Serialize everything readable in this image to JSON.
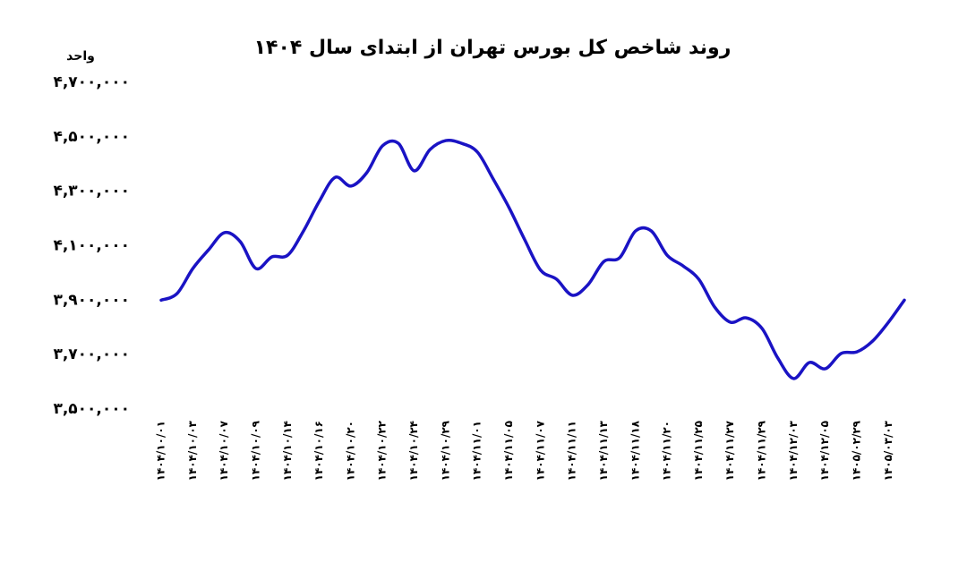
{
  "chart_data": {
    "type": "line",
    "title": "روند شاخص کل بورس تهران از ابتدای سال ۱۴۰۴",
    "y_axis_label": "واحد",
    "categories": [
      "۱۴۰۴/۱۰/۰۱",
      null,
      "۱۴۰۴/۱۰/۰۳",
      null,
      "۱۴۰۴/۱۰/۰۷",
      null,
      "۱۴۰۴/۱۰/۰۹",
      null,
      "۱۴۰۴/۱۰/۱۴",
      null,
      "۱۴۰۴/۱۰/۱۶",
      null,
      "۱۴۰۴/۱۰/۲۰",
      null,
      "۱۴۰۴/۱۰/۲۲",
      null,
      "۱۴۰۴/۱۰/۲۴",
      null,
      "۱۴۰۴/۱۰/۲۹",
      null,
      "۱۴۰۴/۱۱/۰۱",
      null,
      "۱۴۰۴/۱۱/۰۵",
      null,
      "۱۴۰۴/۱۱/۰۷",
      null,
      "۱۴۰۴/۱۱/۱۱",
      null,
      "۱۴۰۴/۱۱/۱۳",
      null,
      "۱۴۰۴/۱۱/۱۸",
      null,
      "۱۴۰۴/۱۱/۲۰",
      null,
      "۱۴۰۴/۱۱/۲۵",
      null,
      "۱۴۰۴/۱۱/۲۷",
      null,
      "۱۴۰۴/۱۱/۲۹",
      null,
      "۱۴۰۴/۱۲/۰۳",
      null,
      "۱۴۰۴/۱۲/۰۵",
      null,
      "۱۴۰۵/۰۲/۲۹",
      null,
      "۱۴۰۵/۰۳/۰۳",
      null
    ],
    "values": [
      3900000,
      3924000,
      4016000,
      4085000,
      4148000,
      4115000,
      4016000,
      4059000,
      4065000,
      4154000,
      4263000,
      4351000,
      4319000,
      4368000,
      4467000,
      4476000,
      4375000,
      4453000,
      4486000,
      4476000,
      4444000,
      4345000,
      4240000,
      4121000,
      4010000,
      3977000,
      3918000,
      3957000,
      4042000,
      4056000,
      4154000,
      4154000,
      4065000,
      4026000,
      3977000,
      3875000,
      3819000,
      3835000,
      3796000,
      3687000,
      3612000,
      3671000,
      3648000,
      3704000,
      3710000,
      3750000,
      3819000,
      3900000
    ],
    "color": "#1a13c4",
    "ylim": [
      3500000,
      4700000
    ],
    "yticks": [
      {
        "value": 3500000,
        "label": "۳,۵۰۰,۰۰۰"
      },
      {
        "value": 3700000,
        "label": "۳,۷۰۰,۰۰۰"
      },
      {
        "value": 3900000,
        "label": "۳,۹۰۰,۰۰۰"
      },
      {
        "value": 4100000,
        "label": "۴,۱۰۰,۰۰۰"
      },
      {
        "value": 4300000,
        "label": "۴,۳۰۰,۰۰۰"
      },
      {
        "value": 4500000,
        "label": "۴,۵۰۰,۰۰۰"
      },
      {
        "value": 4700000,
        "label": "۴,۷۰۰,۰۰۰"
      }
    ],
    "grid": false
  }
}
